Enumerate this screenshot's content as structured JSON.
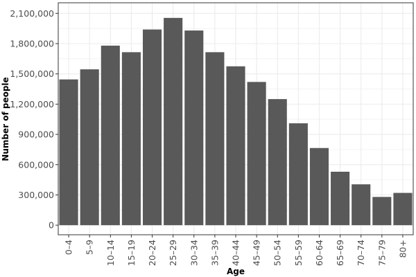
{
  "chart_data": {
    "type": "bar",
    "title": "",
    "xlabel": "Age",
    "ylabel": "Number of people",
    "categories": [
      "0–4",
      "5–9",
      "10–14",
      "15–19",
      "20–24",
      "25–29",
      "30–34",
      "35–39",
      "40–44",
      "45–49",
      "50–54",
      "55–59",
      "60–64",
      "65–69",
      "70–74",
      "75–79",
      "80+"
    ],
    "values": [
      1445000,
      1545000,
      1780000,
      1715000,
      1940000,
      2055000,
      1930000,
      1715000,
      1575000,
      1420000,
      1250000,
      1010000,
      765000,
      530000,
      405000,
      280000,
      320000
    ],
    "yticks": [
      0,
      300000,
      600000,
      900000,
      1200000,
      1500000,
      1800000,
      2100000
    ],
    "ytick_labels": [
      "0",
      "300,000",
      "600,000",
      "900,000",
      "1,200,000",
      "1,500,000",
      "1,800,000",
      "2,100,000"
    ],
    "ylim": [
      -95000,
      2205000
    ],
    "grid": true,
    "bar_color": "#595959",
    "grid_color": "#ebebeb",
    "panel_border_color": "#333333"
  }
}
